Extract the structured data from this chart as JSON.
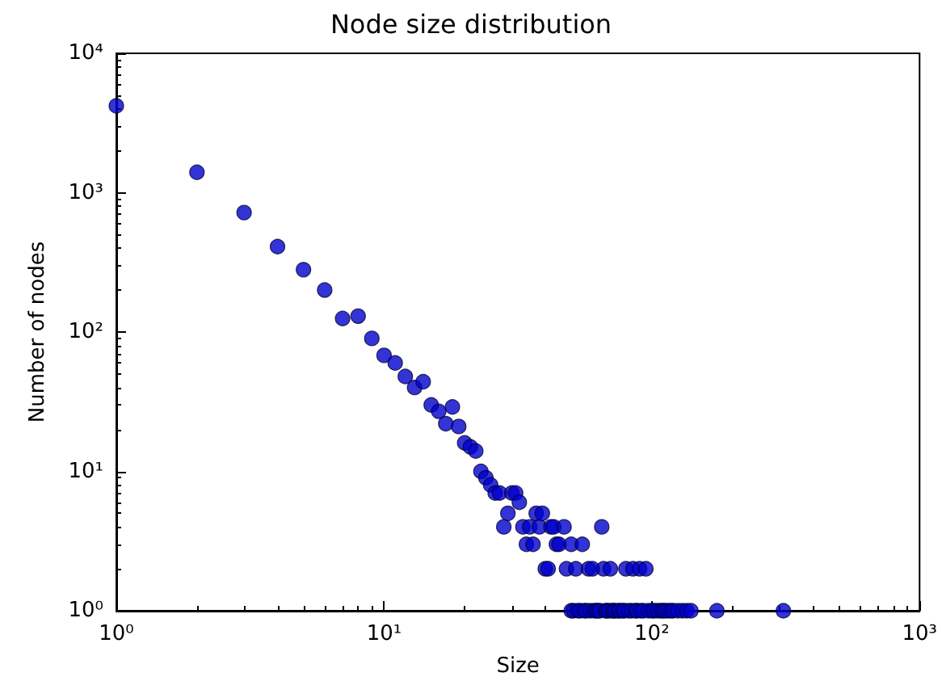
{
  "chart_data": {
    "type": "scatter",
    "title": "Node size distribution",
    "xlabel": "Size",
    "ylabel": "Number of nodes",
    "log": "xy",
    "grid": false,
    "marker": "circle",
    "xlim": [
      1,
      1000
    ],
    "ylim": [
      1,
      10000
    ],
    "xticks": [
      {
        "value": 1,
        "label": "10⁰"
      },
      {
        "value": 10,
        "label": "10¹"
      },
      {
        "value": 100,
        "label": "10²"
      },
      {
        "value": 1000,
        "label": "10³"
      }
    ],
    "yticks": [
      {
        "value": 1,
        "label": "10⁰"
      },
      {
        "value": 10,
        "label": "10¹"
      },
      {
        "value": 100,
        "label": "10²"
      },
      {
        "value": 1000,
        "label": "10³"
      },
      {
        "value": 10000,
        "label": "10⁴"
      }
    ],
    "series": [
      {
        "color": "#0000cc",
        "x": [
          1,
          2,
          3,
          4,
          5,
          6,
          7,
          8,
          9,
          10,
          11,
          12,
          13,
          14,
          15,
          16,
          17,
          18,
          19,
          20,
          21,
          22,
          23,
          24,
          25,
          26,
          27,
          28,
          29,
          30,
          31,
          32,
          33,
          34,
          35,
          36,
          37,
          38,
          39,
          40,
          41,
          42,
          43,
          44,
          45,
          47,
          48,
          50,
          52,
          55,
          58,
          60,
          65,
          66,
          70,
          80,
          85,
          90,
          95,
          50,
          51,
          53,
          54,
          56,
          57,
          59,
          61,
          62,
          63,
          64,
          67,
          68,
          69,
          71,
          72,
          73,
          75,
          76,
          78,
          79,
          82,
          84,
          87,
          88,
          91,
          93,
          97,
          100,
          102,
          105,
          108,
          110,
          112,
          115,
          118,
          120,
          125,
          130,
          135,
          140,
          175,
          310
        ],
        "values": [
          4200,
          1400,
          720,
          410,
          280,
          200,
          125,
          130,
          90,
          68,
          60,
          48,
          40,
          44,
          30,
          27,
          22,
          29,
          21,
          16,
          15,
          14,
          10,
          9,
          8,
          7,
          7,
          4,
          5,
          7,
          7,
          6,
          4,
          3,
          4,
          3,
          5,
          4,
          5,
          2,
          2,
          4,
          4,
          3,
          3,
          4,
          2,
          3,
          2,
          3,
          2,
          2,
          4,
          2,
          2,
          2,
          2,
          2,
          2,
          1,
          1,
          1,
          1,
          1,
          1,
          1,
          1,
          1,
          1,
          1,
          1,
          1,
          1,
          1,
          1,
          1,
          1,
          1,
          1,
          1,
          1,
          1,
          1,
          1,
          1,
          1,
          1,
          1,
          1,
          1,
          1,
          1,
          1,
          1,
          1,
          1,
          1,
          1,
          1,
          1,
          1,
          1
        ]
      }
    ]
  }
}
